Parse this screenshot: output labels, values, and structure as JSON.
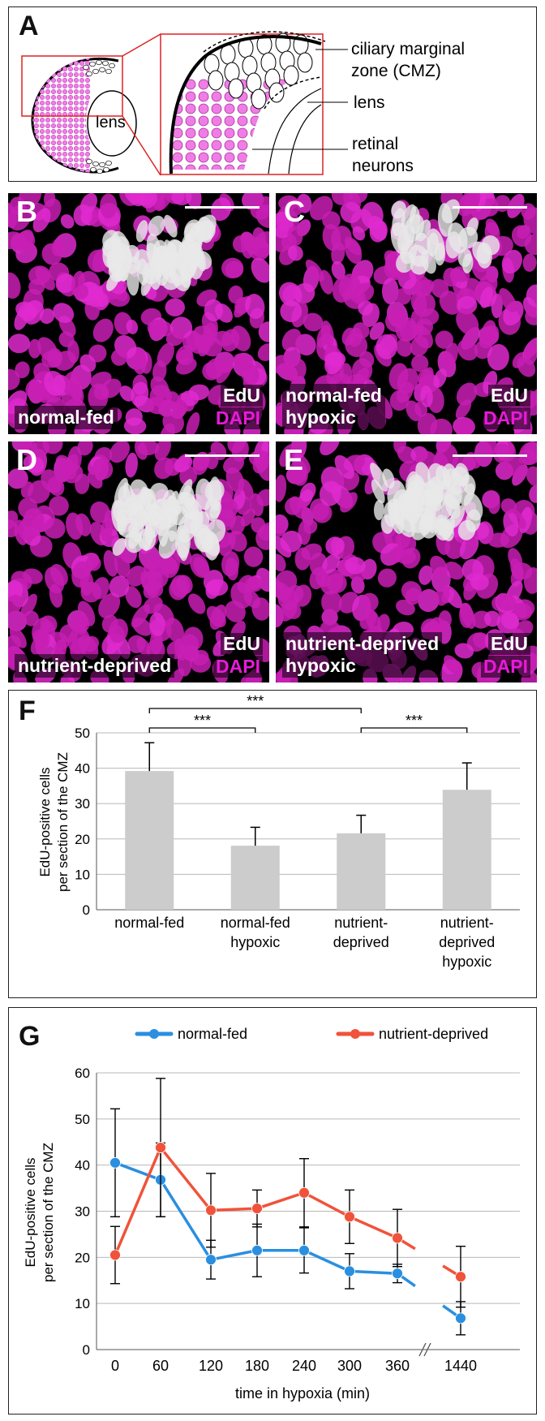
{
  "panelA": {
    "label": "A",
    "lens_small": "lens",
    "annotations": [
      "ciliary marginal",
      "zone (CMZ)",
      "lens",
      "retinal",
      "neurons"
    ]
  },
  "micro": [
    {
      "label": "B",
      "condition": [
        "normal-fed"
      ],
      "edu": "EdU",
      "dapi": "DAPI"
    },
    {
      "label": "C",
      "condition": [
        "normal-fed",
        "hypoxic"
      ],
      "edu": "EdU",
      "dapi": "DAPI"
    },
    {
      "label": "D",
      "condition": [
        "nutrient-deprived"
      ],
      "edu": "EdU",
      "dapi": "DAPI"
    },
    {
      "label": "E",
      "condition": [
        "nutrient-deprived",
        "hypoxic"
      ],
      "edu": "EdU",
      "dapi": "DAPI"
    }
  ],
  "chart_data": [
    {
      "panel": "F",
      "type": "bar",
      "ylabel": [
        "EdU-positive cells",
        "per section of the CMZ"
      ],
      "ylim": [
        0,
        50
      ],
      "yticks": [
        0,
        10,
        20,
        30,
        40,
        50
      ],
      "categories": [
        [
          "normal-fed"
        ],
        [
          "normal-fed",
          "hypoxic"
        ],
        [
          "nutrient-",
          "deprived"
        ],
        [
          "nutrient-",
          "deprived",
          "hypoxic"
        ]
      ],
      "values": [
        39.2,
        18.1,
        21.6,
        33.9
      ],
      "errors": [
        8.0,
        5.2,
        5.1,
        7.6
      ],
      "significance": [
        {
          "from": 0,
          "to": 1,
          "label": "***"
        },
        {
          "from": 0,
          "to": 2,
          "label": "***"
        },
        {
          "from": 2,
          "to": 3,
          "label": "***"
        }
      ],
      "bar_color": "#cccccc",
      "grid": true
    },
    {
      "panel": "G",
      "type": "line",
      "xlabel": "time in hypoxia (min)",
      "ylabel": [
        "EdU-positive cells",
        "per section of the CMZ"
      ],
      "ylim": [
        0,
        60
      ],
      "yticks": [
        0,
        10,
        20,
        30,
        40,
        50,
        60
      ],
      "x": [
        "0",
        "60",
        "120",
        "180",
        "240",
        "300",
        "360",
        "1440"
      ],
      "series": [
        {
          "name": "normal-fed",
          "color": "#2a8fe0",
          "values": [
            40.5,
            36.8,
            19.5,
            21.5,
            21.5,
            17.0,
            16.5,
            6.8
          ],
          "errors": [
            11.7,
            8.0,
            4.2,
            5.7,
            4.9,
            3.8,
            2.0,
            3.6
          ]
        },
        {
          "name": "nutrient-deprived",
          "color": "#f0533a",
          "values": [
            20.5,
            43.8,
            30.2,
            30.6,
            34.0,
            28.8,
            24.2,
            15.8
          ],
          "errors": [
            6.2,
            15.0,
            8.0,
            4.0,
            7.4,
            5.8,
            6.2,
            6.6
          ]
        }
      ],
      "axis_break": "between 360 and 1440",
      "grid": true
    }
  ]
}
